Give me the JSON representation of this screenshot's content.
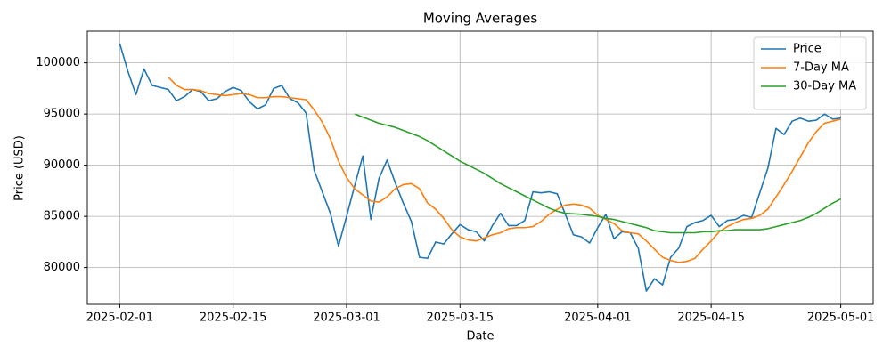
{
  "chart_data": {
    "type": "line",
    "title": "Moving Averages",
    "x_label": "Date",
    "y_label": "Price (USD)",
    "x": [
      "2025-02-01",
      "2025-02-02",
      "2025-02-03",
      "2025-02-04",
      "2025-02-05",
      "2025-02-06",
      "2025-02-07",
      "2025-02-08",
      "2025-02-09",
      "2025-02-10",
      "2025-02-11",
      "2025-02-12",
      "2025-02-13",
      "2025-02-14",
      "2025-02-15",
      "2025-02-16",
      "2025-02-17",
      "2025-02-18",
      "2025-02-19",
      "2025-02-20",
      "2025-02-21",
      "2025-02-22",
      "2025-02-23",
      "2025-02-24",
      "2025-02-25",
      "2025-02-26",
      "2025-02-27",
      "2025-02-28",
      "2025-03-01",
      "2025-03-02",
      "2025-03-03",
      "2025-03-04",
      "2025-03-05",
      "2025-03-06",
      "2025-03-07",
      "2025-03-08",
      "2025-03-09",
      "2025-03-10",
      "2025-03-11",
      "2025-03-12",
      "2025-03-13",
      "2025-03-14",
      "2025-03-15",
      "2025-03-16",
      "2025-03-17",
      "2025-03-18",
      "2025-03-19",
      "2025-03-20",
      "2025-03-21",
      "2025-03-22",
      "2025-03-23",
      "2025-03-24",
      "2025-03-25",
      "2025-03-26",
      "2025-03-27",
      "2025-03-28",
      "2025-03-29",
      "2025-03-30",
      "2025-03-31",
      "2025-04-01",
      "2025-04-02",
      "2025-04-03",
      "2025-04-04",
      "2025-04-05",
      "2025-04-06",
      "2025-04-07",
      "2025-04-08",
      "2025-04-09",
      "2025-04-10",
      "2025-04-11",
      "2025-04-12",
      "2025-04-13",
      "2025-04-14",
      "2025-04-15",
      "2025-04-16",
      "2025-04-17",
      "2025-04-18",
      "2025-04-19",
      "2025-04-20",
      "2025-04-21",
      "2025-04-22",
      "2025-04-23",
      "2025-04-24",
      "2025-04-25",
      "2025-04-26",
      "2025-04-27",
      "2025-04-28",
      "2025-04-29",
      "2025-04-30",
      "2025-05-01"
    ],
    "series": [
      {
        "name": "Price",
        "color": "#1f77b4",
        "values": [
          101900,
          99200,
          96900,
          99400,
          97800,
          97600,
          97400,
          96300,
          96700,
          97400,
          97200,
          96300,
          96500,
          97200,
          97600,
          97300,
          96200,
          95500,
          95900,
          97500,
          97800,
          96500,
          96100,
          95100,
          89500,
          87400,
          85300,
          82100,
          85000,
          88000,
          90900,
          84700,
          88700,
          90500,
          88300,
          86300,
          84500,
          81000,
          80900,
          82500,
          82300,
          83300,
          84200,
          83700,
          83500,
          82600,
          84100,
          85300,
          84100,
          84100,
          84600,
          87400,
          87300,
          87400,
          87200,
          85200,
          83200,
          83000,
          82400,
          83900,
          85200,
          82800,
          83500,
          83400,
          81900,
          77700,
          78900,
          78300,
          81000,
          81900,
          84000,
          84400,
          84600,
          85100,
          84000,
          84600,
          84700,
          85100,
          84900,
          87300,
          89700,
          93600,
          93000,
          94300,
          94600,
          94300,
          94400,
          95000,
          94500,
          94600
        ]
      },
      {
        "name": "7-Day MA",
        "color": "#ff7f0e",
        "values": [
          null,
          null,
          null,
          null,
          null,
          null,
          98600,
          97800,
          97400,
          97400,
          97300,
          97000,
          96900,
          96800,
          96900,
          97000,
          96900,
          96600,
          96600,
          96700,
          96700,
          96600,
          96500,
          96400,
          95400,
          94200,
          92600,
          90400,
          88800,
          87700,
          87100,
          86500,
          86400,
          86900,
          87700,
          88100,
          88200,
          87700,
          86300,
          85700,
          84800,
          83700,
          83000,
          82700,
          82600,
          82900,
          83200,
          83400,
          83800,
          83900,
          83900,
          84000,
          84500,
          85200,
          85700,
          86100,
          86200,
          86100,
          85800,
          85100,
          84700,
          84300,
          83600,
          83400,
          83300,
          82600,
          81800,
          81000,
          80700,
          80500,
          80600,
          80900,
          81800,
          82600,
          83500,
          84000,
          84400,
          84700,
          84800,
          85100,
          85700,
          86900,
          88100,
          89400,
          90800,
          92200,
          93300,
          94100,
          94300,
          94500
        ]
      },
      {
        "name": "30-Day MA",
        "color": "#2ca02c",
        "values": [
          null,
          null,
          null,
          null,
          null,
          null,
          null,
          null,
          null,
          null,
          null,
          null,
          null,
          null,
          null,
          null,
          null,
          null,
          null,
          null,
          null,
          null,
          null,
          null,
          null,
          null,
          null,
          null,
          null,
          95000,
          94700,
          94400,
          94100,
          93900,
          93700,
          93400,
          93100,
          92800,
          92400,
          91900,
          91400,
          90900,
          90400,
          90000,
          89600,
          89200,
          88700,
          88200,
          87800,
          87400,
          87000,
          86600,
          86200,
          85800,
          85500,
          85300,
          85250,
          85200,
          85100,
          85000,
          84800,
          84700,
          84500,
          84300,
          84100,
          83900,
          83600,
          83500,
          83400,
          83400,
          83400,
          83400,
          83500,
          83500,
          83600,
          83600,
          83700,
          83700,
          83700,
          83700,
          83800,
          84000,
          84200,
          84400,
          84600,
          84900,
          85300,
          85800,
          86300,
          86700
        ]
      }
    ],
    "xlim": [
      "2025-01-28",
      "2025-05-05"
    ],
    "xticks": [
      "2025-02-01",
      "2025-02-15",
      "2025-03-01",
      "2025-03-15",
      "2025-04-01",
      "2025-04-15",
      "2025-05-01"
    ],
    "ylim": [
      76400,
      103100
    ],
    "yticks": [
      80000,
      85000,
      90000,
      95000,
      100000
    ],
    "grid": true,
    "legend": "upper right"
  }
}
